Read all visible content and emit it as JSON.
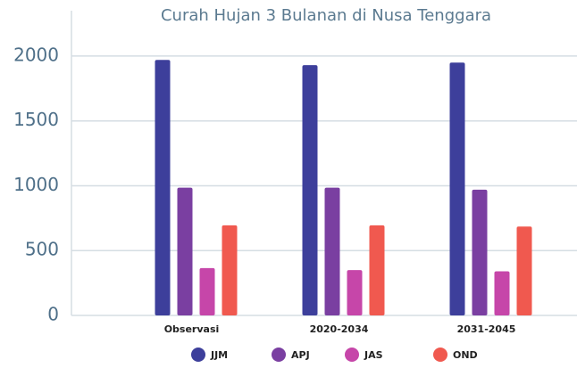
{
  "chart_data": {
    "type": "bar",
    "title": "Curah Hujan 3 Bulanan di Nusa Tenggara",
    "categories": [
      "Observasi",
      "2020-2034",
      "2031-2045"
    ],
    "series": [
      {
        "name": "JJM",
        "color": "#3d3f9b",
        "values": [
          1970,
          1930,
          1950
        ]
      },
      {
        "name": "APJ",
        "color": "#7a3fa1",
        "values": [
          985,
          985,
          970
        ]
      },
      {
        "name": "JAS",
        "color": "#c646a9",
        "values": [
          365,
          350,
          340
        ]
      },
      {
        "name": "OND",
        "color": "#f0594f",
        "values": [
          695,
          695,
          685
        ]
      }
    ],
    "ylim": [
      0,
      2350
    ],
    "yticks": [
      0,
      500,
      1000,
      1500,
      2000
    ],
    "grid": true,
    "legend": "bottom"
  }
}
